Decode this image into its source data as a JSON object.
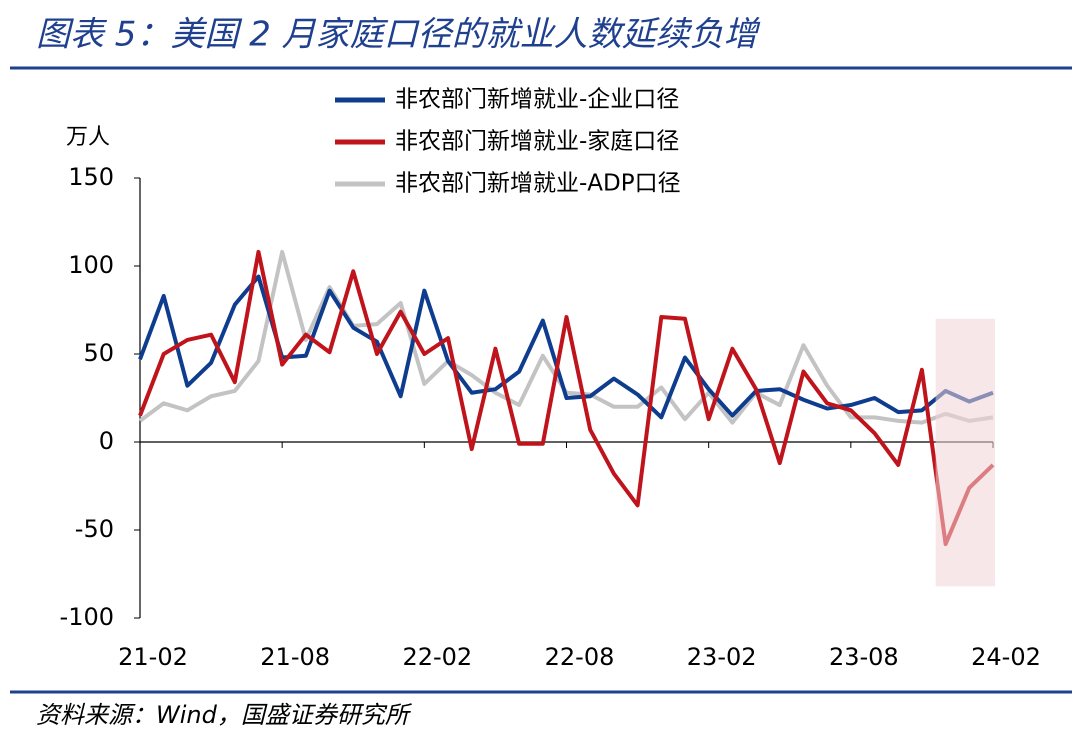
{
  "chart_data": {
    "type": "line",
    "title": "图表 5：美国 2 月家庭口径的就业人数延续负增",
    "y_axis_label": "万人",
    "source": "资料来源：Wind，国盛证券研究所",
    "categories": [
      "21-02",
      null,
      null,
      null,
      null,
      null,
      "21-08",
      null,
      null,
      null,
      null,
      null,
      "22-02",
      null,
      null,
      null,
      null,
      null,
      "22-08",
      null,
      null,
      null,
      null,
      null,
      "23-02",
      null,
      null,
      null,
      null,
      null,
      "23-08",
      null,
      null,
      null,
      null,
      null,
      "24-02"
    ],
    "series": [
      {
        "name": "非农部门新增就业-企业口径",
        "color": "#0e3d8f",
        "values": [
          47,
          83,
          32,
          45,
          78,
          94,
          48,
          49,
          86,
          65,
          57,
          26,
          86,
          46,
          28,
          30,
          40,
          69,
          25,
          26,
          36,
          27,
          14,
          48,
          30,
          15,
          29,
          30,
          24,
          19,
          21,
          25,
          17,
          18,
          29,
          23,
          28
        ]
      },
      {
        "name": "非农部门新增就业-家庭口径",
        "color": "#c0141c",
        "values": [
          15,
          50,
          58,
          61,
          34,
          108,
          44,
          61,
          51,
          97,
          50,
          74,
          50,
          59,
          -4,
          53,
          -1,
          -1,
          71,
          7,
          -18,
          -36,
          71,
          70,
          13,
          53,
          30,
          -12,
          40,
          22,
          18,
          5,
          -13,
          41,
          -58,
          -26,
          -13
        ]
      },
      {
        "name": "非农部门新增就业-ADP口径",
        "color": "#c3c3c3",
        "values": [
          12,
          22,
          18,
          26,
          29,
          46,
          108,
          58,
          88,
          66,
          67,
          79,
          33,
          46,
          38,
          28,
          21,
          49,
          28,
          27,
          20,
          20,
          31,
          13,
          28,
          11,
          28,
          21,
          55,
          32,
          14,
          14,
          12,
          11,
          16,
          12,
          14
        ]
      }
    ],
    "ylim": [
      -100,
      150
    ],
    "yticks": [
      -100,
      -50,
      0,
      50,
      100,
      150
    ],
    "grid": false
  }
}
